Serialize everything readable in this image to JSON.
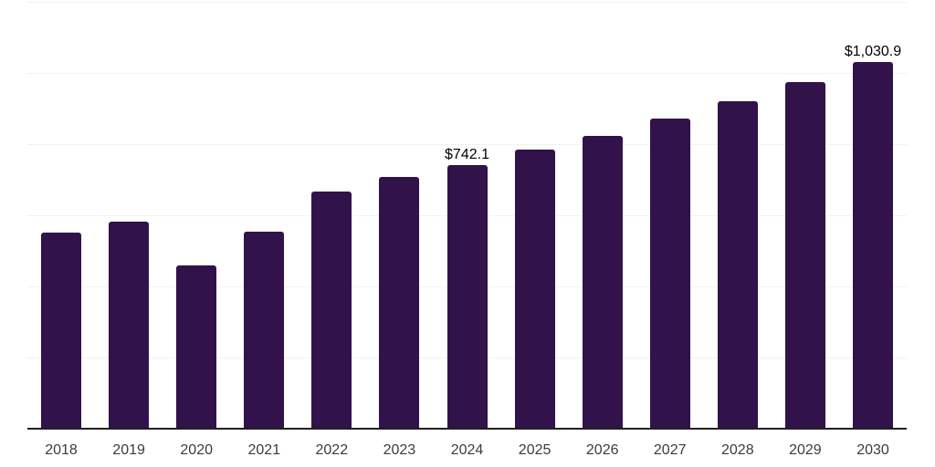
{
  "chart_data": {
    "type": "bar",
    "title": "",
    "xlabel": "",
    "ylabel": "",
    "categories": [
      "2018",
      "2019",
      "2020",
      "2021",
      "2022",
      "2023",
      "2024",
      "2025",
      "2026",
      "2027",
      "2028",
      "2029",
      "2030"
    ],
    "values": [
      551,
      581,
      460,
      555,
      668,
      707,
      742.1,
      784,
      824,
      872,
      921,
      975,
      1030.9
    ],
    "data_labels": [
      {
        "category": "2024",
        "text": "$742.1"
      },
      {
        "category": "2030",
        "text": "$1,030.9"
      }
    ],
    "ylim": [
      0,
      1200
    ],
    "grid_step": 200,
    "grid": "horizontal-only",
    "y_tick_labels_visible": false,
    "legend_position": "none",
    "colors": {
      "bar_fill": "#31124B",
      "gridline": "#F2F2F2",
      "axis_line": "#1F1F1F",
      "tick_label": "#3C3C3C",
      "data_label": "#000000",
      "background": "#FFFFFF"
    }
  }
}
